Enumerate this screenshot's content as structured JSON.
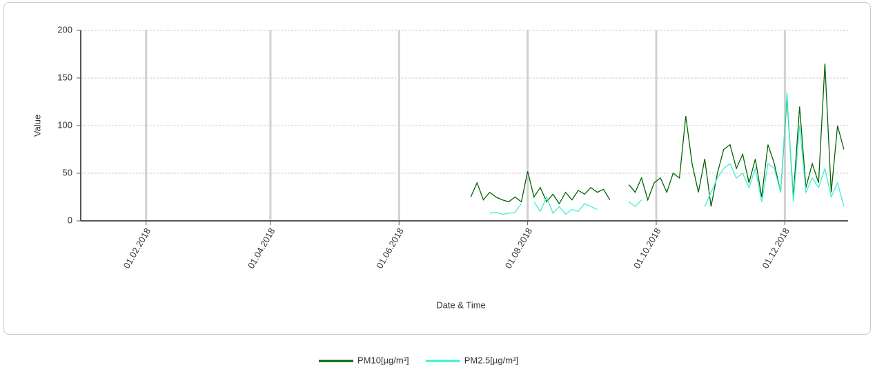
{
  "chart_data": {
    "type": "line",
    "x_label": "Date & Time",
    "y_label": "Value",
    "xlim": [
      "2018-01-01",
      "2018-12-31"
    ],
    "xticks": [
      {
        "value": "2018-02-01",
        "label": "01.02.2018"
      },
      {
        "value": "2018-04-01",
        "label": "01.04.2018"
      },
      {
        "value": "2018-06-01",
        "label": "01.06.2018"
      },
      {
        "value": "2018-08-01",
        "label": "01.08.2018"
      },
      {
        "value": "2018-10-01",
        "label": "01.10.2018"
      },
      {
        "value": "2018-12-01",
        "label": "01.12.2018"
      }
    ],
    "ylim": [
      0,
      200
    ],
    "yticks": [
      0,
      50,
      100,
      150,
      200
    ],
    "grid": true,
    "legend": "bottom",
    "x": [
      "2018-07-05",
      "2018-07-08",
      "2018-07-11",
      "2018-07-14",
      "2018-07-17",
      "2018-07-20",
      "2018-07-23",
      "2018-07-26",
      "2018-07-29",
      "2018-08-01",
      "2018-08-04",
      "2018-08-07",
      "2018-08-10",
      "2018-08-13",
      "2018-08-16",
      "2018-08-19",
      "2018-08-22",
      "2018-08-25",
      "2018-08-28",
      "2018-08-31",
      "2018-09-03",
      "2018-09-06",
      "2018-09-09",
      "2018-09-12",
      "2018-09-15",
      "2018-09-18",
      "2018-09-21",
      "2018-09-24",
      "2018-09-27",
      "2018-09-30",
      "2018-10-03",
      "2018-10-06",
      "2018-10-09",
      "2018-10-12",
      "2018-10-15",
      "2018-10-18",
      "2018-10-21",
      "2018-10-24",
      "2018-10-27",
      "2018-10-30",
      "2018-11-02",
      "2018-11-05",
      "2018-11-08",
      "2018-11-11",
      "2018-11-14",
      "2018-11-17",
      "2018-11-20",
      "2018-11-23",
      "2018-11-26",
      "2018-11-29",
      "2018-12-02",
      "2018-12-05",
      "2018-12-08",
      "2018-12-11",
      "2018-12-14",
      "2018-12-17",
      "2018-12-20",
      "2018-12-23",
      "2018-12-26",
      "2018-12-29"
    ],
    "series": [
      {
        "name": "PM10[µg/m³]",
        "color": "#006400",
        "values": [
          25,
          40,
          22,
          30,
          25,
          22,
          20,
          25,
          20,
          52,
          25,
          35,
          20,
          28,
          18,
          30,
          22,
          32,
          28,
          35,
          30,
          33,
          22,
          null,
          null,
          38,
          30,
          45,
          22,
          40,
          45,
          30,
          50,
          45,
          110,
          60,
          30,
          65,
          15,
          50,
          75,
          80,
          55,
          70,
          40,
          65,
          25,
          80,
          60,
          30,
          130,
          25,
          120,
          35,
          60,
          40,
          165,
          30,
          100,
          75
        ]
      },
      {
        "name": "PM2.5[µg/m³]",
        "color": "#3ff0d0",
        "values": [
          null,
          null,
          null,
          8,
          9,
          7,
          8,
          9,
          18,
          null,
          20,
          10,
          25,
          8,
          15,
          7,
          12,
          10,
          18,
          15,
          12,
          null,
          null,
          null,
          null,
          20,
          15,
          22,
          null,
          null,
          null,
          null,
          null,
          null,
          null,
          null,
          null,
          15,
          30,
          45,
          55,
          60,
          45,
          50,
          35,
          55,
          20,
          60,
          55,
          30,
          135,
          20,
          100,
          30,
          45,
          35,
          55,
          25,
          40,
          15
        ]
      }
    ]
  }
}
